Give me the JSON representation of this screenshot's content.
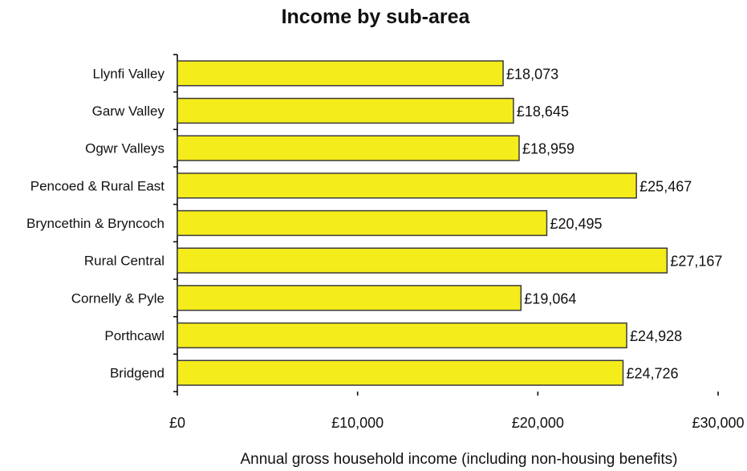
{
  "chart_data": {
    "type": "bar",
    "orientation": "horizontal",
    "title": "Income by sub-area",
    "xlabel": "Annual gross household income (including non-housing benefits)",
    "ylabel": "",
    "categories": [
      "Llynfi Valley",
      "Garw Valley",
      "Ogwr Valleys",
      "Pencoed & Rural East",
      "Bryncethin & Bryncoch",
      "Rural Central",
      "Cornelly & Pyle",
      "Porthcawl",
      "Bridgend"
    ],
    "values": [
      18073,
      18645,
      18959,
      25467,
      20495,
      27167,
      19064,
      24928,
      24726
    ],
    "value_labels": [
      "£18,073",
      "£18,645",
      "£18,959",
      "£25,467",
      "£20,495",
      "£27,167",
      "£19,064",
      "£24,928",
      "£24,726"
    ],
    "xlim": [
      0,
      30000
    ],
    "x_ticks": [
      0,
      10000,
      20000,
      30000
    ],
    "x_tick_labels": [
      "£0",
      "£10,000",
      "£20,000",
      "£30,000"
    ],
    "grid": false,
    "legend": "none",
    "colors": {
      "bar_fill": "#f5ec1c",
      "bar_stroke": "#3a3a3a",
      "text": "#111111"
    }
  }
}
